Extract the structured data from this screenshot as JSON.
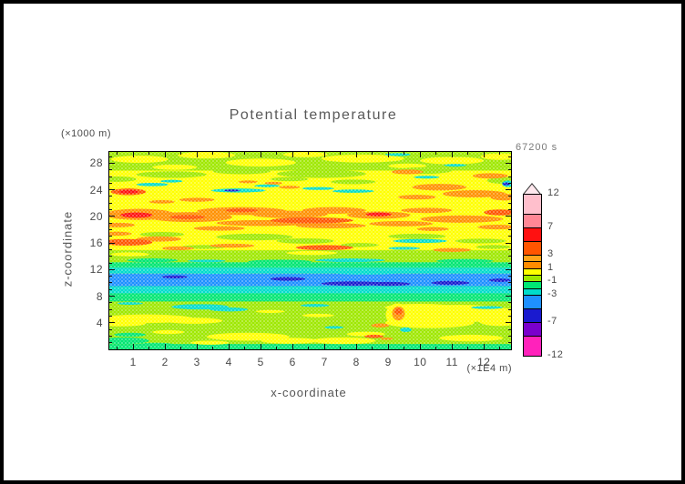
{
  "title": "Potential temperature",
  "time_label": "67200 s",
  "axes": {
    "x": {
      "label": "x-coordinate",
      "unit": "(×1E4 m)",
      "min": 0.25,
      "max": 12.85,
      "major_ticks": [
        1,
        2,
        3,
        4,
        5,
        6,
        7,
        8,
        9,
        10,
        11,
        12
      ],
      "minor_step": 0.5
    },
    "y": {
      "label": "z-coordinate",
      "unit": "(×1000 m)",
      "min": 0,
      "max": 29.7,
      "major_ticks": [
        4,
        8,
        12,
        16,
        20,
        24,
        28
      ],
      "minor_step": 1
    }
  },
  "colorbar": {
    "min": -12,
    "max": 12,
    "labels": [
      12,
      7,
      3,
      1,
      -1,
      -3,
      -7,
      -12
    ],
    "arrow_color": "#FFE8EE",
    "segments": [
      {
        "from": 9,
        "to": 12,
        "color": "#FFBFCC"
      },
      {
        "from": 7,
        "to": 9,
        "color": "#FF8795"
      },
      {
        "from": 5,
        "to": 7,
        "color": "#FF1111"
      },
      {
        "from": 3,
        "to": 5,
        "color": "#FF5500"
      },
      {
        "from": 2,
        "to": 3,
        "color": "#FFA319"
      },
      {
        "from": 1,
        "to": 2,
        "color": "#FF8C00"
      },
      {
        "from": 0,
        "to": 1,
        "color": "#FFFF00"
      },
      {
        "from": -1,
        "to": 0,
        "color": "#9FE800"
      },
      {
        "from": -2,
        "to": -1,
        "color": "#00E673"
      },
      {
        "from": -3,
        "to": -2,
        "color": "#00DCCB"
      },
      {
        "from": -5,
        "to": -3,
        "color": "#1E90FF"
      },
      {
        "from": -7,
        "to": -5,
        "color": "#1A1ACF"
      },
      {
        "from": -9,
        "to": -7,
        "color": "#7A00CC"
      },
      {
        "from": -12,
        "to": -9,
        "color": "#FF22BB"
      }
    ]
  },
  "chart_data": {
    "type": "heatmap",
    "style": "filled_contour",
    "title": "Potential temperature",
    "time": "67200 s",
    "xlabel": "x-coordinate (×1E4 m)",
    "ylabel": "z-coordinate (×1000 m)",
    "xlim": [
      0.25,
      12.85
    ],
    "ylim": [
      0,
      29.7
    ],
    "contour_levels": [
      -12,
      -9,
      -7,
      -5,
      -3,
      -2,
      -1,
      0,
      1,
      2,
      3,
      5,
      7,
      9,
      12
    ],
    "palette": {
      "y": "#FFFF00",
      "ch": "#9FE800",
      "sg": "#00E673",
      "cy": "#00DCCB",
      "bl": "#1E90FF",
      "nv": "#1A1ACF",
      "or": "#FF9100",
      "od": "#FF5500",
      "rd": "#FF1111"
    },
    "base_color": "ch",
    "bands": [
      [
        14.9,
        26.9,
        "y"
      ],
      [
        12.3,
        13.1,
        "sg"
      ],
      [
        11.4,
        12.3,
        "cy"
      ],
      [
        9.5,
        11.4,
        "bl"
      ],
      [
        8.4,
        9.5,
        "cy"
      ],
      [
        7.2,
        8.4,
        "sg"
      ],
      [
        0,
        0.8,
        "sg"
      ]
    ],
    "blob_groups": [
      {
        "c": "y",
        "pts": [
          [
            1.2,
            28.6,
            0.9,
            0.55
          ],
          [
            3.3,
            29.2,
            0.9,
            0.5
          ],
          [
            5.0,
            28.1,
            1.1,
            0.6
          ],
          [
            6.4,
            29.3,
            0.7,
            0.4
          ],
          [
            8.2,
            28.7,
            1.3,
            0.6
          ],
          [
            11.0,
            28.4,
            1.0,
            0.55
          ],
          [
            12.5,
            29.0,
            0.6,
            0.5
          ],
          [
            2.3,
            27.4,
            0.7,
            0.4
          ],
          [
            9.6,
            27.6,
            0.6,
            0.35
          ],
          [
            0.9,
            14.3,
            0.6,
            0.3
          ],
          [
            6.6,
            14.5,
            0.8,
            0.3
          ],
          [
            11.2,
            5.4,
            1.9,
            1.3
          ],
          [
            10.3,
            4.0,
            1.4,
            0.8
          ],
          [
            12.5,
            4.4,
            0.7,
            0.9
          ],
          [
            10.0,
            6.3,
            1.1,
            0.55
          ],
          [
            1.4,
            4.6,
            1.5,
            0.65
          ],
          [
            0.6,
            3.9,
            0.8,
            0.45
          ],
          [
            2.9,
            4.3,
            0.9,
            0.45
          ],
          [
            4.6,
            1.9,
            1.3,
            0.6
          ],
          [
            5.9,
            1.3,
            0.9,
            0.45
          ],
          [
            7.6,
            1.3,
            1.0,
            0.5
          ],
          [
            8.3,
            2.3,
            0.6,
            0.35
          ],
          [
            11.6,
            1.7,
            1.0,
            0.5
          ],
          [
            3.4,
            1.0,
            0.6,
            0.3
          ],
          [
            6.8,
            5.1,
            0.5,
            0.25
          ],
          [
            5.3,
            5.7,
            0.45,
            0.22
          ],
          [
            2.1,
            2.6,
            0.5,
            0.3
          ],
          [
            9.3,
            5.2,
            0.38,
            1.7
          ]
        ]
      },
      {
        "c": "ch",
        "pts": [
          [
            2.2,
            26.3,
            1.1,
            0.5
          ],
          [
            4.4,
            26.8,
            0.9,
            0.45
          ],
          [
            6.9,
            26.4,
            1.4,
            0.6
          ],
          [
            10.1,
            26.9,
            0.9,
            0.5
          ],
          [
            0.5,
            25.6,
            0.6,
            0.4
          ],
          [
            7.9,
            25.2,
            0.7,
            0.35
          ],
          [
            12.6,
            25.4,
            0.5,
            0.5
          ],
          [
            5.9,
            25.6,
            0.6,
            0.3
          ],
          [
            4.8,
            16.9,
            1.2,
            0.5
          ],
          [
            6.4,
            16.3,
            0.9,
            0.4
          ],
          [
            1.9,
            17.3,
            0.7,
            0.35
          ],
          [
            9.9,
            17.0,
            0.9,
            0.4
          ],
          [
            11.9,
            16.3,
            0.8,
            0.35
          ],
          [
            8.1,
            15.7,
            0.6,
            0.3
          ],
          [
            3.2,
            15.4,
            0.7,
            0.3
          ],
          [
            12.3,
            15.4,
            0.55,
            0.3
          ]
        ]
      },
      {
        "c": "sg",
        "pts": [
          [
            1.6,
            13.4,
            0.8,
            0.3
          ],
          [
            5.6,
            13.2,
            1.0,
            0.3
          ],
          [
            11.4,
            13.3,
            0.9,
            0.3
          ],
          [
            0.7,
            1.3,
            0.8,
            0.5
          ],
          [
            1.7,
            0.7,
            0.6,
            0.3
          ],
          [
            0.9,
            2.2,
            0.5,
            0.3
          ]
        ]
      },
      {
        "c": "cy",
        "pts": [
          [
            1.6,
            24.8,
            0.5,
            0.25
          ],
          [
            2.2,
            25.3,
            0.35,
            0.2
          ],
          [
            4.3,
            23.9,
            0.85,
            0.3
          ],
          [
            5.2,
            24.6,
            0.4,
            0.2
          ],
          [
            6.8,
            24.2,
            0.5,
            0.22
          ],
          [
            7.9,
            23.8,
            0.65,
            0.25
          ],
          [
            10.2,
            25.9,
            0.4,
            0.2
          ],
          [
            11.1,
            27.7,
            0.35,
            0.2
          ],
          [
            9.3,
            29.3,
            0.4,
            0.22
          ],
          [
            12.75,
            24.9,
            0.18,
            0.5
          ],
          [
            10.0,
            16.3,
            0.85,
            0.3
          ],
          [
            9.5,
            15.2,
            0.5,
            0.22
          ],
          [
            7.8,
            13.4,
            1.1,
            0.28
          ],
          [
            3.3,
            13.3,
            0.6,
            0.2
          ],
          [
            3.5,
            11.6,
            0.8,
            0.25
          ],
          [
            8.3,
            11.5,
            1.0,
            0.25
          ],
          [
            3.1,
            6.4,
            0.9,
            0.4
          ],
          [
            4.0,
            6.0,
            0.6,
            0.3
          ],
          [
            6.7,
            6.6,
            0.45,
            0.22
          ],
          [
            0.9,
            6.9,
            0.4,
            0.2
          ],
          [
            12.1,
            6.3,
            0.5,
            0.22
          ],
          [
            9.55,
            2.95,
            0.18,
            0.35
          ],
          [
            7.3,
            3.3,
            0.3,
            0.2
          ]
        ]
      },
      {
        "c": "nv",
        "pts": [
          [
            4.1,
            23.9,
            0.25,
            0.15
          ],
          [
            12.7,
            24.9,
            0.12,
            0.22
          ],
          [
            5.85,
            10.6,
            0.55,
            0.28
          ],
          [
            7.9,
            9.9,
            1.0,
            0.33
          ],
          [
            9.0,
            9.85,
            0.7,
            0.3
          ],
          [
            10.95,
            10.0,
            0.6,
            0.3
          ],
          [
            2.3,
            10.9,
            0.4,
            0.22
          ],
          [
            12.5,
            10.4,
            0.35,
            0.25
          ]
        ]
      },
      {
        "c": "or",
        "pts": [
          [
            9.6,
            26.7,
            0.5,
            0.35
          ],
          [
            12.2,
            26.1,
            0.55,
            0.4
          ],
          [
            4.6,
            25.2,
            0.3,
            0.2
          ],
          [
            5.4,
            25.0,
            0.28,
            0.2
          ],
          [
            5.9,
            24.4,
            0.33,
            0.22
          ],
          [
            10.6,
            24.4,
            0.85,
            0.5
          ],
          [
            11.7,
            23.4,
            1.0,
            0.55
          ],
          [
            12.65,
            22.9,
            0.45,
            0.5
          ],
          [
            9.9,
            22.9,
            0.6,
            0.35
          ],
          [
            3.0,
            22.5,
            0.55,
            0.3
          ],
          [
            1.9,
            22.2,
            0.4,
            0.25
          ],
          [
            1.2,
            20.3,
            1.1,
            0.85
          ],
          [
            2.8,
            19.9,
            1.3,
            0.75
          ],
          [
            4.4,
            20.8,
            1.4,
            0.6
          ],
          [
            5.9,
            20.3,
            1.2,
            0.55
          ],
          [
            7.3,
            20.9,
            1.0,
            0.5
          ],
          [
            8.7,
            20.2,
            1.0,
            0.55
          ],
          [
            10.2,
            20.9,
            0.8,
            0.4
          ],
          [
            11.3,
            19.6,
            1.3,
            0.55
          ],
          [
            5.1,
            19.0,
            1.5,
            0.45
          ],
          [
            7.2,
            18.6,
            1.1,
            0.4
          ],
          [
            9.4,
            18.9,
            1.0,
            0.4
          ],
          [
            0.5,
            18.7,
            0.55,
            0.35
          ],
          [
            3.7,
            18.2,
            0.8,
            0.35
          ],
          [
            12.4,
            18.4,
            0.6,
            0.35
          ],
          [
            10.4,
            18.1,
            0.5,
            0.3
          ],
          [
            1.8,
            16.6,
            0.7,
            0.4
          ],
          [
            0.5,
            17.4,
            0.45,
            0.3
          ],
          [
            2.4,
            15.2,
            0.5,
            0.28
          ],
          [
            4.1,
            15.6,
            0.7,
            0.3
          ],
          [
            11.0,
            14.95,
            0.6,
            0.3
          ],
          [
            9.32,
            5.4,
            0.2,
            1.05
          ],
          [
            8.75,
            3.6,
            0.28,
            0.3
          ],
          [
            8.95,
            1.6,
            0.2,
            0.18
          ]
        ]
      },
      {
        "c": "od",
        "pts": [
          [
            0.85,
            23.7,
            0.55,
            0.5
          ],
          [
            2.7,
            19.9,
            0.55,
            0.33
          ],
          [
            4.4,
            20.9,
            0.5,
            0.28
          ],
          [
            6.6,
            19.4,
            1.3,
            0.45
          ],
          [
            12.5,
            20.6,
            0.5,
            0.45
          ],
          [
            0.8,
            16.1,
            0.8,
            0.5
          ],
          [
            7.0,
            15.3,
            0.9,
            0.38
          ],
          [
            9.32,
            5.7,
            0.12,
            0.5
          ],
          [
            8.55,
            1.95,
            0.3,
            0.25
          ]
        ]
      },
      {
        "c": "rd",
        "pts": [
          [
            0.85,
            23.7,
            0.3,
            0.28
          ],
          [
            1.1,
            20.2,
            0.5,
            0.4
          ],
          [
            8.7,
            20.3,
            0.4,
            0.28
          ]
        ]
      }
    ]
  }
}
